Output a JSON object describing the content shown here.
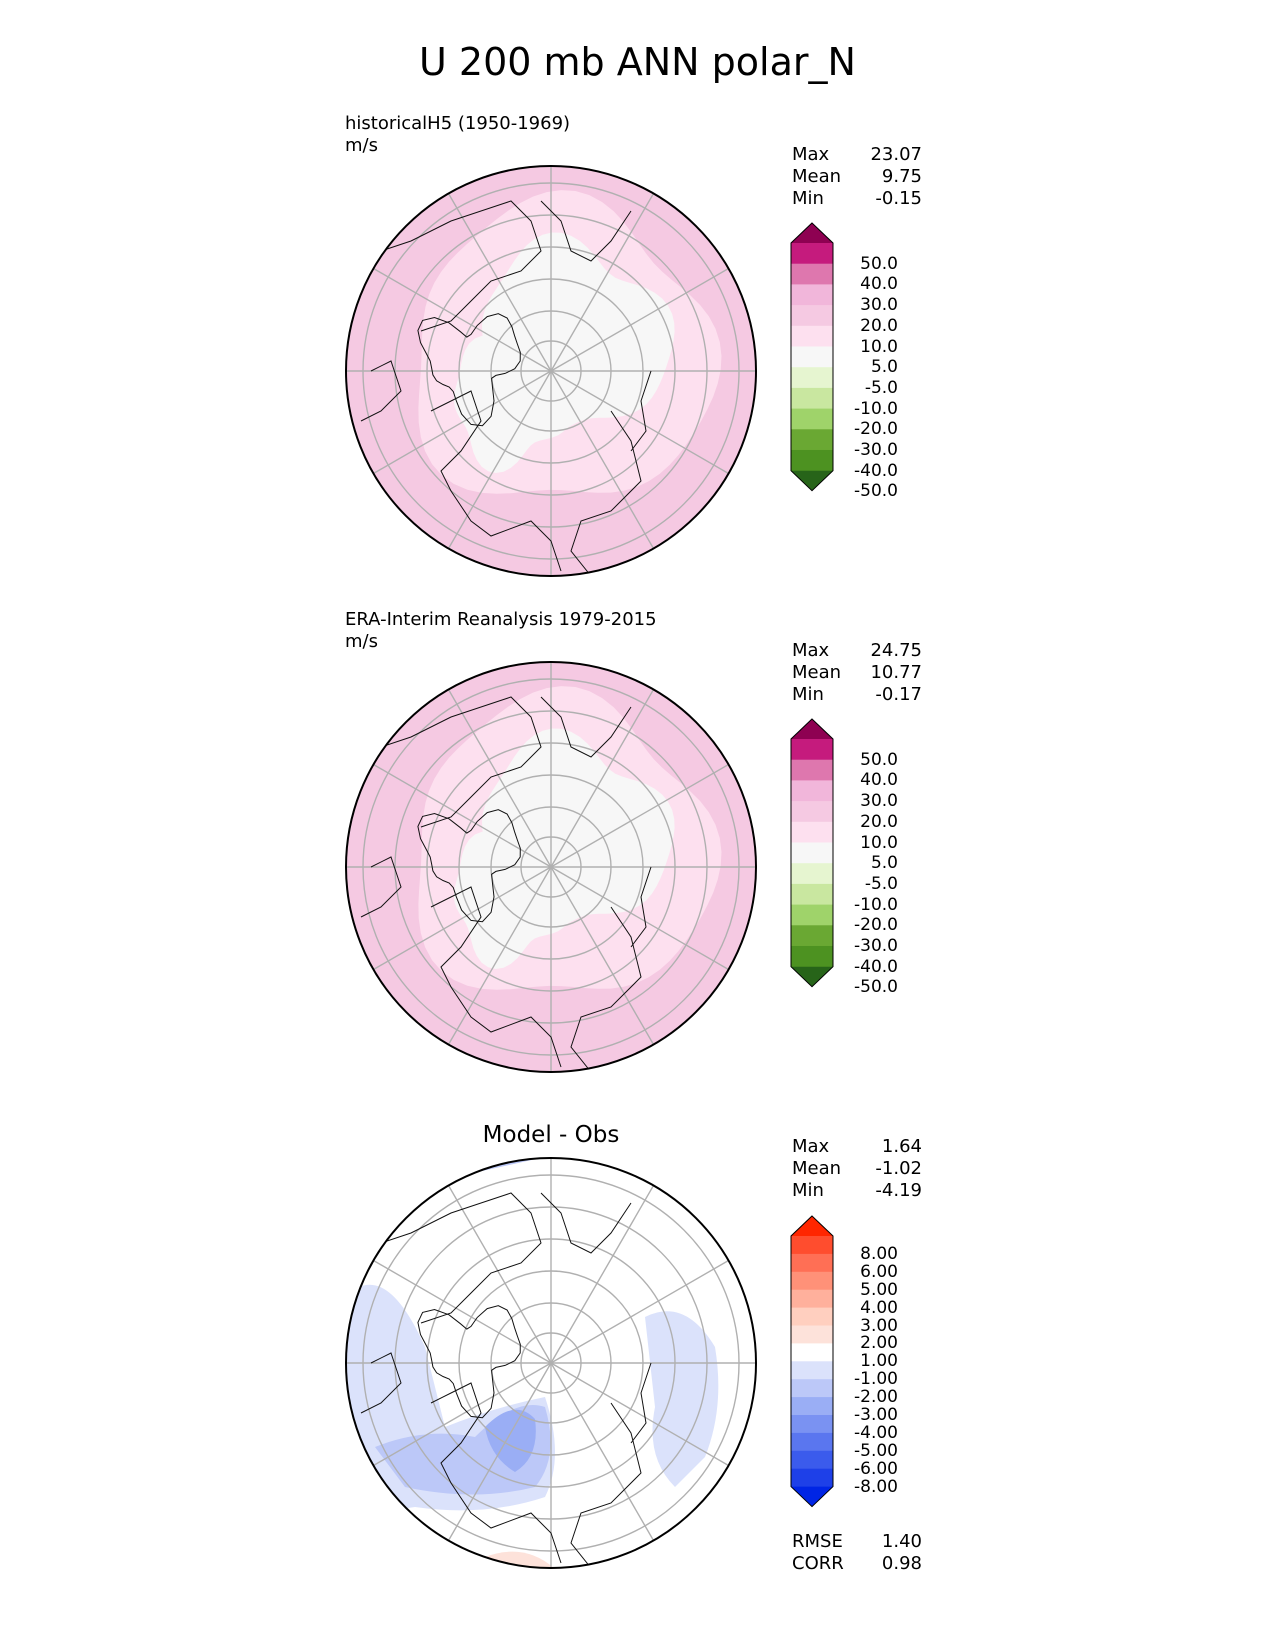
{
  "figure_title": "U 200 mb ANN polar_N",
  "panels": [
    {
      "title": "historicalH5 (1950-1969)",
      "units": "m/s",
      "stats": [
        {
          "label": "Max",
          "value": "23.07"
        },
        {
          "label": "Mean",
          "value": "9.75"
        },
        {
          "label": "Min",
          "value": "-0.15"
        }
      ],
      "colorbar": {
        "labels": [
          "50.0",
          "40.0",
          "30.0",
          "20.0",
          "10.0",
          "5.0",
          "-5.0",
          "-10.0",
          "-20.0",
          "-30.0",
          "-40.0",
          "-50.0"
        ],
        "colors": [
          "#8e0152",
          "#c51b7d",
          "#de77ae",
          "#f1b6da",
          "#f5c9e2",
          "#fde0ef",
          "#f7f7f7",
          "#e6f5d0",
          "#c9e7a0",
          "#9fd36a",
          "#6aa833",
          "#4d9221",
          "#276419"
        ]
      },
      "field": {
        "pole": "#f7f7f7",
        "inner": "#fde0ef",
        "mid": "#f5c9e2",
        "edge": "#eea2cf"
      }
    },
    {
      "title": "ERA-Interim Reanalysis 1979-2015",
      "units": "m/s",
      "stats": [
        {
          "label": "Max",
          "value": "24.75"
        },
        {
          "label": "Mean",
          "value": "10.77"
        },
        {
          "label": "Min",
          "value": "-0.17"
        }
      ],
      "colorbar": {
        "labels": [
          "50.0",
          "40.0",
          "30.0",
          "20.0",
          "10.0",
          "5.0",
          "-5.0",
          "-10.0",
          "-20.0",
          "-30.0",
          "-40.0",
          "-50.0"
        ],
        "colors": [
          "#8e0152",
          "#c51b7d",
          "#de77ae",
          "#f1b6da",
          "#f5c9e2",
          "#fde0ef",
          "#f7f7f7",
          "#e6f5d0",
          "#c9e7a0",
          "#9fd36a",
          "#6aa833",
          "#4d9221",
          "#276419"
        ]
      },
      "field": {
        "pole": "#f7f7f7",
        "inner": "#fde0ef",
        "mid": "#f5c9e2",
        "edge": "#eea2cf"
      }
    }
  ],
  "diff_panel": {
    "title": "Model - Obs",
    "stats": [
      {
        "label": "Max",
        "value": "1.64"
      },
      {
        "label": "Mean",
        "value": "-1.02"
      },
      {
        "label": "Min",
        "value": "-4.19"
      }
    ],
    "colorbar": {
      "labels": [
        "8.00",
        "6.00",
        "5.00",
        "4.00",
        "3.00",
        "2.00",
        "1.00",
        "-1.00",
        "-2.00",
        "-3.00",
        "-4.00",
        "-5.00",
        "-6.00",
        "-8.00"
      ],
      "colors": [
        "#ff2600",
        "#ff4d2e",
        "#ff6f55",
        "#ff9178",
        "#ffb09c",
        "#ffcfbf",
        "#fde2da",
        "#ffffff",
        "#dbe2fb",
        "#bcc8f8",
        "#9aaef5",
        "#7a92f2",
        "#5a76ef",
        "#3b5bec",
        "#1e40e8",
        "#0025e5"
      ]
    },
    "field": {
      "pole": "#ffffff",
      "light": "#dbe2fb",
      "mid": "#bcc8f8",
      "dark": "#9aaef5"
    },
    "rmse": {
      "label": "RMSE",
      "value": "1.40"
    },
    "corr": {
      "label": "CORR",
      "value": "0.98"
    }
  },
  "chart_data": [
    {
      "type": "heatmap",
      "title": "historicalH5 (1950-1969)",
      "units": "m/s",
      "projection": "polar_N",
      "stats": {
        "max": 23.07,
        "mean": 9.75,
        "min": -0.15
      },
      "levels": [
        -50,
        -40,
        -30,
        -20,
        -10,
        -5,
        5,
        10,
        20,
        30,
        40,
        50
      ]
    },
    {
      "type": "heatmap",
      "title": "ERA-Interim Reanalysis 1979-2015",
      "units": "m/s",
      "projection": "polar_N",
      "stats": {
        "max": 24.75,
        "mean": 10.77,
        "min": -0.17
      },
      "levels": [
        -50,
        -40,
        -30,
        -20,
        -10,
        -5,
        5,
        10,
        20,
        30,
        40,
        50
      ]
    },
    {
      "type": "heatmap",
      "title": "Model - Obs",
      "projection": "polar_N",
      "stats": {
        "max": 1.64,
        "mean": -1.02,
        "min": -4.19,
        "rmse": 1.4,
        "corr": 0.98
      },
      "levels": [
        -8,
        -6,
        -5,
        -4,
        -3,
        -2,
        -1,
        1,
        2,
        3,
        4,
        5,
        6,
        8
      ]
    }
  ]
}
